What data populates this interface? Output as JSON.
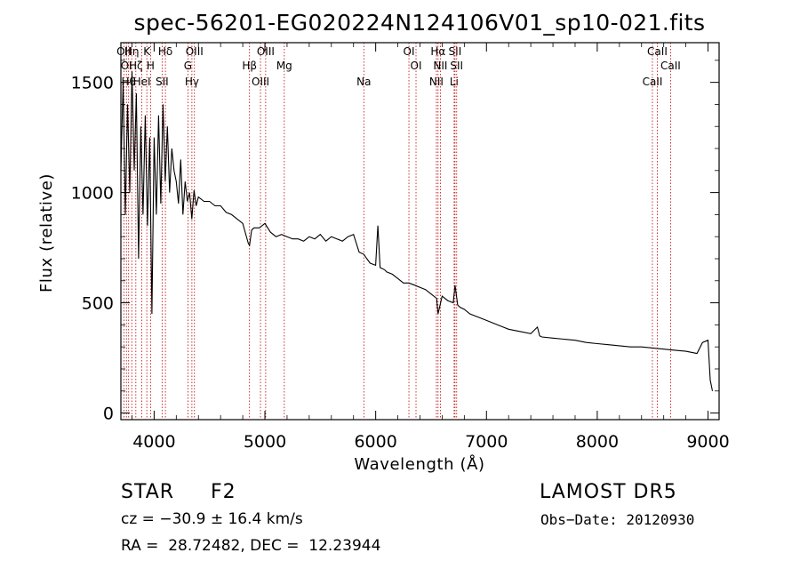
{
  "chart_data": {
    "type": "line",
    "title": "spec-56201-EG020224N124106V01_sp10-021.fits",
    "xlabel": "Wavelength (Å)",
    "ylabel": "Flux (relative)",
    "xlim": [
      3700,
      9100
    ],
    "ylim": [
      -30,
      1680
    ],
    "x_ticks": [
      4000,
      5000,
      6000,
      7000,
      8000,
      9000
    ],
    "y_ticks": [
      0,
      500,
      1000,
      1500
    ],
    "x_tick_labels": [
      "4000",
      "5000",
      "6000",
      "7000",
      "8000",
      "9000"
    ],
    "y_tick_labels": [
      "0",
      "500",
      "1000",
      "1500"
    ],
    "series": [
      {
        "x": [
          3700,
          3720,
          3740,
          3760,
          3780,
          3800,
          3820,
          3840,
          3860,
          3880,
          3900,
          3920,
          3940,
          3960,
          3980,
          4000,
          4020,
          4040,
          4060,
          4080,
          4100,
          4120,
          4140,
          4160,
          4180,
          4200,
          4220,
          4240,
          4260,
          4280,
          4300,
          4320,
          4340,
          4360,
          4380,
          4400,
          4450,
          4500,
          4550,
          4600,
          4650,
          4700,
          4750,
          4800,
          4850,
          4861,
          4880,
          4900,
          4950,
          5000,
          5050,
          5100,
          5150,
          5200,
          5250,
          5300,
          5350,
          5400,
          5450,
          5500,
          5550,
          5600,
          5650,
          5700,
          5750,
          5800,
          5850,
          5893,
          5920,
          5950,
          6000,
          6020,
          6040,
          6080,
          6100,
          6150,
          6200,
          6250,
          6300,
          6350,
          6400,
          6450,
          6500,
          6550,
          6563,
          6600,
          6650,
          6700,
          6716,
          6740,
          6760,
          6800,
          6850,
          6900,
          6950,
          7000,
          7050,
          7100,
          7150,
          7200,
          7300,
          7400,
          7460,
          7480,
          7500,
          7600,
          7700,
          7800,
          7900,
          8000,
          8100,
          8200,
          8300,
          8400,
          8500,
          8600,
          8700,
          8800,
          8900,
          8950,
          9000,
          9020,
          9040
        ],
        "y": [
          1100,
          1500,
          900,
          1400,
          1000,
          1550,
          1100,
          1450,
          700,
          1300,
          900,
          1350,
          850,
          1250,
          450,
          1250,
          900,
          1350,
          950,
          1400,
          1050,
          1300,
          1000,
          1200,
          1100,
          1050,
          950,
          1150,
          900,
          1050,
          960,
          1000,
          880,
          1010,
          940,
          980,
          960,
          960,
          940,
          940,
          910,
          900,
          880,
          860,
          770,
          760,
          830,
          840,
          840,
          860,
          820,
          800,
          810,
          800,
          790,
          790,
          780,
          800,
          790,
          810,
          780,
          800,
          790,
          780,
          800,
          810,
          730,
          720,
          700,
          680,
          670,
          850,
          660,
          650,
          640,
          630,
          610,
          590,
          590,
          580,
          570,
          560,
          540,
          520,
          450,
          530,
          510,
          500,
          580,
          490,
          480,
          470,
          450,
          440,
          430,
          420,
          410,
          400,
          390,
          380,
          370,
          360,
          390,
          350,
          345,
          340,
          335,
          330,
          320,
          315,
          310,
          305,
          300,
          300,
          295,
          290,
          285,
          280,
          270,
          320,
          330,
          150,
          100
        ]
      }
    ],
    "lines": [
      {
        "x": 3727,
        "label": "OII"
      },
      {
        "x": 3750,
        "label": "OI"
      },
      {
        "x": 3770,
        "label": "Hθ"
      },
      {
        "x": 3798,
        "label": "Hη"
      },
      {
        "x": 3835,
        "label": "Hζ"
      },
      {
        "x": 3889,
        "label": "HeI"
      },
      {
        "x": 3934,
        "label": "K"
      },
      {
        "x": 3968,
        "label": "H"
      },
      {
        "x": 4072,
        "label": "SII"
      },
      {
        "x": 4102,
        "label": "Hδ"
      },
      {
        "x": 4305,
        "label": "G"
      },
      {
        "x": 4341,
        "label": "Hγ"
      },
      {
        "x": 4364,
        "label": "OIII"
      },
      {
        "x": 4861,
        "label": "Hβ"
      },
      {
        "x": 4960,
        "label": "OIII"
      },
      {
        "x": 5007,
        "label": "OIII"
      },
      {
        "x": 5175,
        "label": "Mg"
      },
      {
        "x": 5893,
        "label": "Na"
      },
      {
        "x": 6300,
        "label": "OI"
      },
      {
        "x": 6364,
        "label": "OI"
      },
      {
        "x": 6548,
        "label": "NII"
      },
      {
        "x": 6563,
        "label": "Hα"
      },
      {
        "x": 6584,
        "label": "NII"
      },
      {
        "x": 6708,
        "label": "Li"
      },
      {
        "x": 6716,
        "label": "SII"
      },
      {
        "x": 6731,
        "label": "SII"
      },
      {
        "x": 8498,
        "label": "CaII"
      },
      {
        "x": 8542,
        "label": "CaII"
      },
      {
        "x": 8662,
        "label": "CaII"
      }
    ],
    "grid": false,
    "legend": "none"
  },
  "info": {
    "class": "STAR",
    "subclass": "F2",
    "survey": "LAMOST DR5",
    "cz": "cz = −30.9 ± 16.4 km/s",
    "obs_date": "Obs−Date: 20120930",
    "radec": "RA =  28.72482, DEC =  12.23944"
  }
}
